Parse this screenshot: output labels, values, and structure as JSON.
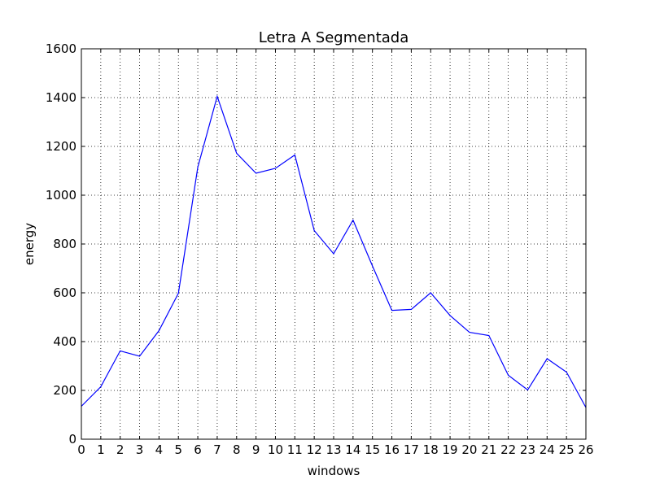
{
  "chart_data": {
    "type": "line",
    "title": "Letra A Segmentada",
    "xlabel": "windows",
    "ylabel": "energy",
    "xlim": [
      0,
      26
    ],
    "ylim": [
      0,
      1600
    ],
    "xticks": [
      0,
      1,
      2,
      3,
      4,
      5,
      6,
      7,
      8,
      9,
      10,
      11,
      12,
      13,
      14,
      15,
      16,
      17,
      18,
      19,
      20,
      21,
      22,
      23,
      24,
      25,
      26
    ],
    "yticks": [
      0,
      200,
      400,
      600,
      800,
      1000,
      1200,
      1400,
      1600
    ],
    "grid": true,
    "series": [
      {
        "color": "#0000ff",
        "x": [
          0,
          1,
          2,
          3,
          4,
          5,
          6,
          7,
          8,
          9,
          10,
          11,
          12,
          13,
          14,
          15,
          16,
          17,
          18,
          19,
          20,
          21,
          22,
          23,
          24,
          25,
          26
        ],
        "y": [
          135,
          215,
          362,
          340,
          445,
          598,
          1115,
          1405,
          1172,
          1090,
          1110,
          1165,
          855,
          760,
          898,
          710,
          528,
          532,
          600,
          507,
          438,
          425,
          262,
          202,
          330,
          275,
          130
        ]
      }
    ]
  }
}
